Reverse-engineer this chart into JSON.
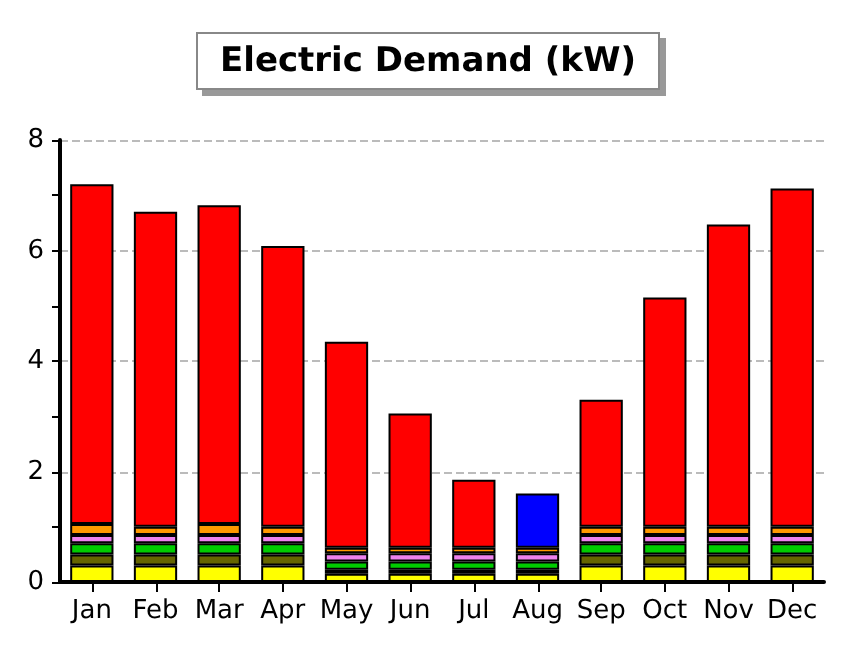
{
  "chart_data": {
    "type": "bar",
    "title": "Electric Demand (kW)",
    "stacked": true,
    "categories": [
      "Jan",
      "Feb",
      "Mar",
      "Apr",
      "May",
      "Jun",
      "Jul",
      "Aug",
      "Sep",
      "Oct",
      "Nov",
      "Dec"
    ],
    "series": [
      {
        "color": "#ffff00",
        "values": [
          0.3,
          0.3,
          0.3,
          0.3,
          0.15,
          0.15,
          0.15,
          0.15,
          0.3,
          0.3,
          0.3,
          0.3
        ]
      },
      {
        "color": "#666600",
        "values": [
          0.2,
          0.2,
          0.2,
          0.2,
          0.07,
          0.07,
          0.07,
          0.07,
          0.2,
          0.2,
          0.2,
          0.2
        ]
      },
      {
        "color": "#00cc00",
        "values": [
          0.2,
          0.2,
          0.2,
          0.2,
          0.15,
          0.15,
          0.15,
          0.15,
          0.2,
          0.2,
          0.2,
          0.2
        ]
      },
      {
        "color": "#ee82ee",
        "values": [
          0.15,
          0.15,
          0.15,
          0.15,
          0.15,
          0.15,
          0.15,
          0.15,
          0.15,
          0.15,
          0.15,
          0.15
        ]
      },
      {
        "color": "#ff9900",
        "values": [
          0.2,
          0.15,
          0.2,
          0.15,
          0.1,
          0.1,
          0.1,
          0.1,
          0.15,
          0.15,
          0.15,
          0.15
        ]
      },
      {
        "color": "#ff0000",
        "values": [
          6.15,
          5.7,
          5.77,
          5.08,
          3.73,
          2.43,
          1.23,
          null,
          2.3,
          4.15,
          5.47,
          6.12
        ]
      },
      {
        "color": "#0000ff",
        "values": [
          null,
          null,
          null,
          null,
          null,
          null,
          null,
          0.98,
          null,
          null,
          null,
          null
        ]
      }
    ],
    "ylim": [
      0,
      8
    ],
    "yticks": [
      0,
      {
        "value": 1,
        "label": null
      },
      2,
      {
        "value": 3,
        "label": null
      },
      4,
      {
        "value": 5,
        "label": null
      },
      6,
      {
        "value": 7,
        "label": null
      },
      8
    ],
    "grid": "y"
  }
}
